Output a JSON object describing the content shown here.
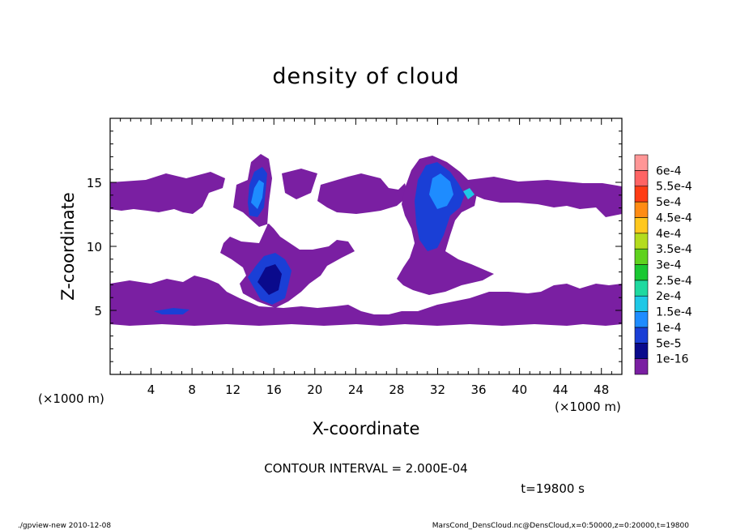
{
  "chart_data": {
    "type": "heatmap",
    "title": "density of cloud",
    "xlabel": "X-coordinate",
    "ylabel": "Z-coordinate",
    "x_unit": "(×1000 m)",
    "y_unit": "(×1000 m)",
    "xlim": [
      0,
      50
    ],
    "ylim": [
      0,
      20
    ],
    "x_ticks": [
      4,
      8,
      12,
      16,
      20,
      24,
      28,
      32,
      36,
      40,
      44,
      48
    ],
    "y_ticks": [
      5,
      10,
      15
    ],
    "contour_interval_text": "CONTOUR INTERVAL = 2.000E-04",
    "time_text": "t=19800 s",
    "colorbar": {
      "levels": [
        "1e-16",
        "5e-5",
        "1e-4",
        "1.5e-4",
        "2e-4",
        "2.5e-4",
        "3e-4",
        "3.5e-4",
        "4e-4",
        "4.5e-4",
        "5e-4",
        "5.5e-4",
        "6e-4"
      ],
      "colors": [
        "#7a1fa2",
        "#0a0a8c",
        "#1a3fd6",
        "#1e8cff",
        "#1ec8e6",
        "#1ed9a0",
        "#19c832",
        "#5fd21e",
        "#b4dc1e",
        "#ffc81e",
        "#ff8c14",
        "#ff3c14",
        "#ff6464",
        "#ff9696"
      ]
    },
    "cloud_layers": [
      {
        "name": "upper layer",
        "z_range": [
          13.6,
          15.2
        ],
        "x_extent": [
          0,
          50
        ]
      },
      {
        "name": "lower layer",
        "z_range": [
          4.0,
          7.0
        ],
        "x_extent": [
          0,
          50
        ]
      },
      {
        "name": "column 1",
        "x_center": 15,
        "z_range": [
          5.5,
          16.8
        ]
      },
      {
        "name": "column 2",
        "x_center": 32,
        "z_range": [
          8,
          16.4
        ]
      }
    ]
  },
  "footer": {
    "left": "./gpview-new   2010-12-08",
    "right": "MarsCond_DensCloud.nc@DensCloud,x=0:50000,z=0:20000,t=19800"
  }
}
